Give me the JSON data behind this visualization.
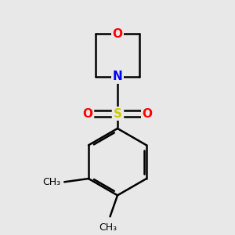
{
  "background_color": "#e8e8e8",
  "atom_colors": {
    "O": "#ff0000",
    "N": "#0000ff",
    "S": "#cccc00",
    "C": "#000000"
  },
  "bond_color": "#000000",
  "bond_width": 1.8,
  "font_size_atoms": 11,
  "font_size_methyl": 9,
  "xlim": [
    -2.2,
    2.2
  ],
  "ylim": [
    -3.5,
    2.5
  ]
}
